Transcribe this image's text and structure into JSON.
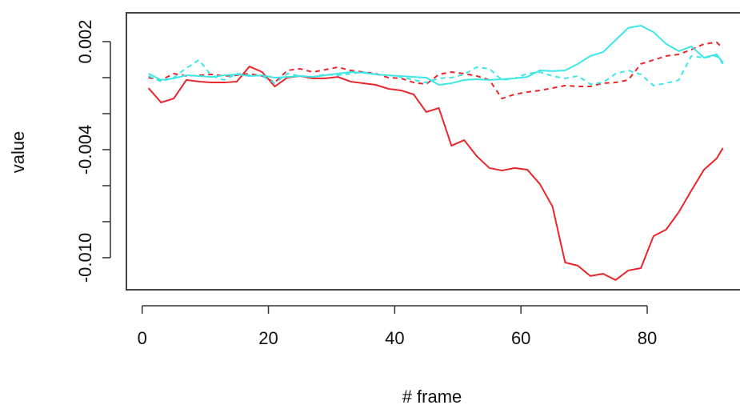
{
  "chart_data": {
    "type": "line",
    "x_label": "# frame",
    "y_label": "value",
    "xlim": [
      -2.5,
      94.7
    ],
    "ylim": [
      -0.01178,
      0.0036
    ],
    "xticks": [
      0,
      20,
      40,
      60,
      80
    ],
    "yticks": [
      0.002,
      {
        "value": 0,
        "label": null
      },
      {
        "value": -0.002,
        "label": null
      },
      -0.004,
      {
        "value": -0.006,
        "label": null
      },
      {
        "value": -0.008,
        "label": null
      },
      {
        "value": -0.01,
        "label": "-0.010"
      }
    ],
    "x": [
      1,
      3,
      5,
      7,
      9,
      11,
      13,
      15,
      17,
      19,
      21,
      23,
      25,
      27,
      29,
      31,
      33,
      35,
      37,
      39,
      41,
      43,
      45,
      47,
      49,
      51,
      53,
      55,
      57,
      59,
      61,
      63,
      65,
      67,
      69,
      71,
      73,
      75,
      77,
      79,
      81,
      83,
      85,
      87,
      89,
      91,
      92
    ],
    "series": [
      {
        "color": "#e8262b",
        "dashed": false,
        "values": [
          -0.00058,
          -0.00138,
          -0.00116,
          -0.00013,
          -0.00022,
          -0.00027,
          -0.00027,
          -0.00022,
          0.00062,
          0.00031,
          -0.00049,
          0,
          9e-05,
          -4e-05,
          -4e-05,
          4e-05,
          -0.00022,
          -0.00031,
          -0.0004,
          -0.00062,
          -0.00071,
          -0.00093,
          -0.00191,
          -0.00169,
          -0.00378,
          -0.00347,
          -0.00436,
          -0.00502,
          -0.00516,
          -0.00502,
          -0.00511,
          -0.00591,
          -0.00716,
          -0.01027,
          -0.01044,
          -0.01102,
          -0.01089,
          -0.01124,
          -0.01071,
          -0.01058,
          -0.0088,
          -0.00844,
          -0.00747,
          -0.00627,
          -0.00511,
          -0.00449,
          -0.00391
        ]
      },
      {
        "color": "#e8262b",
        "dashed": true,
        "values": [
          0,
          -0.00013,
          0.00022,
          9e-05,
          0.00013,
          0.00018,
          9e-05,
          0.00013,
          0.00022,
          9e-05,
          -0.00027,
          0.0004,
          0.00049,
          0.00031,
          0.00044,
          0.00058,
          0.0004,
          0.00031,
          0.00022,
          0,
          -4e-05,
          -0.00027,
          -0.00036,
          0.00018,
          0.00031,
          0.00022,
          9e-05,
          -0.00013,
          -0.00116,
          -0.00093,
          -0.0008,
          -0.00071,
          -0.00058,
          -0.00044,
          -0.00049,
          -0.00049,
          -0.00031,
          -0.00027,
          -0.00013,
          0.00076,
          0.00098,
          0.0012,
          0.00129,
          0.00156,
          0.00187,
          0.00196,
          0.00164
        ]
      },
      {
        "color": "#3ee6e6",
        "dashed": false,
        "values": [
          0.00022,
          -0.00013,
          -4e-05,
          0.00013,
          9e-05,
          4e-05,
          0.00013,
          0.00018,
          9e-05,
          0.00013,
          0,
          4e-05,
          9e-05,
          4e-05,
          0.00013,
          0.00022,
          0.00031,
          0.00027,
          0.00018,
          0.00013,
          9e-05,
          4e-05,
          0,
          -0.0004,
          -0.00031,
          -0.00013,
          -9e-05,
          -0.00013,
          -9e-05,
          -4e-05,
          4e-05,
          0.0004,
          0.00036,
          0.0004,
          0.00076,
          0.0012,
          0.00142,
          0.00209,
          0.00276,
          0.00289,
          0.00253,
          0.00187,
          0.00147,
          0.00173,
          0.00111,
          0.00129,
          0.00084
        ]
      },
      {
        "color": "#3ee6e6",
        "dashed": true,
        "values": [
          9e-05,
          -0.00022,
          0,
          0.00053,
          0.00098,
          9e-05,
          -0.00013,
          0.00022,
          0.00013,
          9e-05,
          -0.00031,
          0.00022,
          9e-05,
          4e-05,
          0.00018,
          0.00013,
          0.00022,
          0.00031,
          0.00018,
          0.00013,
          4e-05,
          -0.00013,
          -0.00027,
          -4e-05,
          0,
          0.00018,
          0.00058,
          0.00049,
          -0.00013,
          -4e-05,
          0.00022,
          0.00031,
          9e-05,
          -4e-05,
          9e-05,
          -0.00036,
          -0.00027,
          0.00022,
          0.0004,
          0.00018,
          -0.00044,
          -0.00031,
          -0.00013,
          0.0012,
          0.00111,
          0.0012,
          0.00076
        ]
      }
    ]
  }
}
